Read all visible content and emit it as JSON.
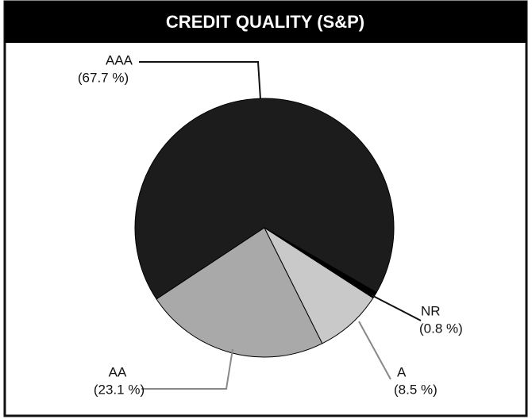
{
  "chart_data": {
    "type": "pie",
    "title": "CREDIT QUALITY (S&P)",
    "categories": [
      "AAA",
      "AA",
      "A",
      "NR"
    ],
    "values": [
      67.7,
      23.1,
      8.5,
      0.8
    ],
    "value_labels": [
      "(67.7 %)",
      "(23.1 %)",
      "(8.5 %)",
      "(0.8 %)"
    ],
    "colors": [
      "#1c1c1c",
      "#a9a9a9",
      "#c9c9c9",
      "#000000"
    ]
  }
}
